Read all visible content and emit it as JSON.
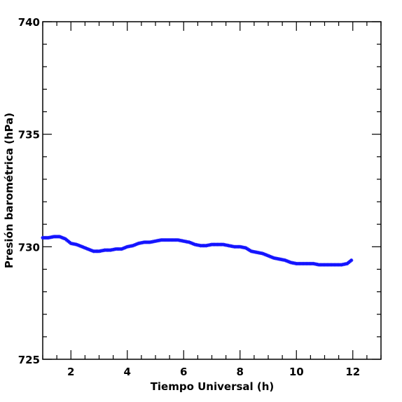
{
  "chart_data": {
    "type": "line",
    "title": "",
    "xlabel": "Tiempo Universal (h)",
    "ylabel": "Presión barométrica (hPa)",
    "xlim": [
      1,
      13
    ],
    "ylim": [
      725,
      740
    ],
    "x_ticks": [
      2,
      4,
      6,
      8,
      10,
      12
    ],
    "x_tick_labels": [
      "2",
      "4",
      "6",
      "8",
      "10",
      "12"
    ],
    "y_ticks": [
      725,
      730,
      735,
      740
    ],
    "y_tick_labels": [
      "725",
      "730",
      "735",
      "740"
    ],
    "grid": false,
    "marker": "star",
    "colors": {
      "series": "#1414ff",
      "axes": "#000000"
    },
    "series": [
      {
        "x": [
          1.0,
          1.2,
          1.4,
          1.6,
          1.8,
          2.0,
          2.2,
          2.4,
          2.6,
          2.8,
          3.0,
          3.2,
          3.4,
          3.6,
          3.8,
          4.0,
          4.2,
          4.4,
          4.6,
          4.8,
          5.0,
          5.2,
          5.4,
          5.6,
          5.8,
          6.0,
          6.2,
          6.4,
          6.6,
          6.8,
          7.0,
          7.2,
          7.4,
          7.6,
          7.8,
          8.0,
          8.2,
          8.4,
          8.6,
          8.8,
          9.0,
          9.2,
          9.4,
          9.6,
          9.8,
          10.0,
          10.2,
          10.4,
          10.6,
          10.8,
          11.0,
          11.2,
          11.4,
          11.6,
          11.8,
          11.95
        ],
        "y": [
          730.4,
          730.4,
          730.45,
          730.45,
          730.35,
          730.15,
          730.1,
          730.0,
          729.9,
          729.8,
          729.8,
          729.85,
          729.85,
          729.9,
          729.9,
          730.0,
          730.05,
          730.15,
          730.2,
          730.2,
          730.25,
          730.3,
          730.3,
          730.3,
          730.3,
          730.25,
          730.2,
          730.1,
          730.05,
          730.05,
          730.1,
          730.1,
          730.1,
          730.05,
          730.0,
          730.0,
          729.95,
          729.8,
          729.75,
          729.7,
          729.6,
          729.5,
          729.45,
          729.4,
          729.3,
          729.25,
          729.25,
          729.25,
          729.25,
          729.2,
          729.2,
          729.2,
          729.2,
          729.2,
          729.25,
          729.4
        ]
      }
    ]
  }
}
